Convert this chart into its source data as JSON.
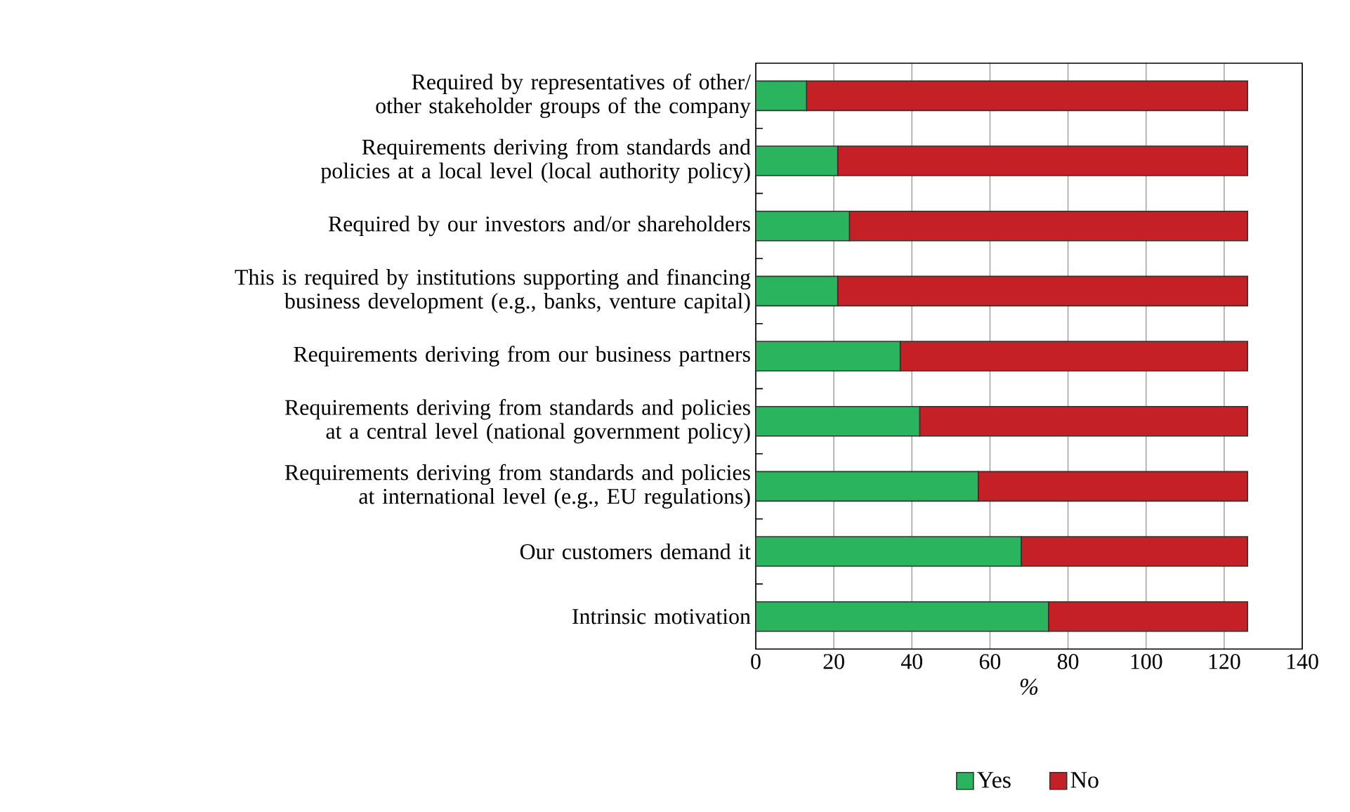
{
  "chart_data": {
    "type": "bar",
    "orientation": "horizontal",
    "stacked": true,
    "categories": [
      "Required by representatives of other/ other stakeholder groups of the company",
      "Requirements deriving from standards and policies at a local level (local authority policy)",
      "Required by our investors and/or shareholders",
      "This is required by institutions supporting and financing business development (e.g., banks, venture capital)",
      "Requirements deriving from our business partners",
      "Requirements deriving from standards and policies at a central level (national government policy)",
      "Requirements deriving from standards and policies at international level (e.g., EU regulations)",
      "Our customers demand it",
      "Intrinsic motivation"
    ],
    "series": [
      {
        "name": "Yes",
        "color": "#2bb45e",
        "values": [
          13,
          21,
          24,
          21,
          37,
          42,
          57,
          68,
          75
        ]
      },
      {
        "name": "No",
        "color": "#c42026",
        "values": [
          113,
          105,
          102,
          105,
          89,
          84,
          69,
          58,
          51
        ]
      }
    ],
    "xlabel": "%",
    "xlim": [
      0,
      140
    ],
    "xticks": [
      0,
      20,
      40,
      60,
      80,
      100,
      120,
      140
    ],
    "grid": "x",
    "legend": "bottom"
  }
}
